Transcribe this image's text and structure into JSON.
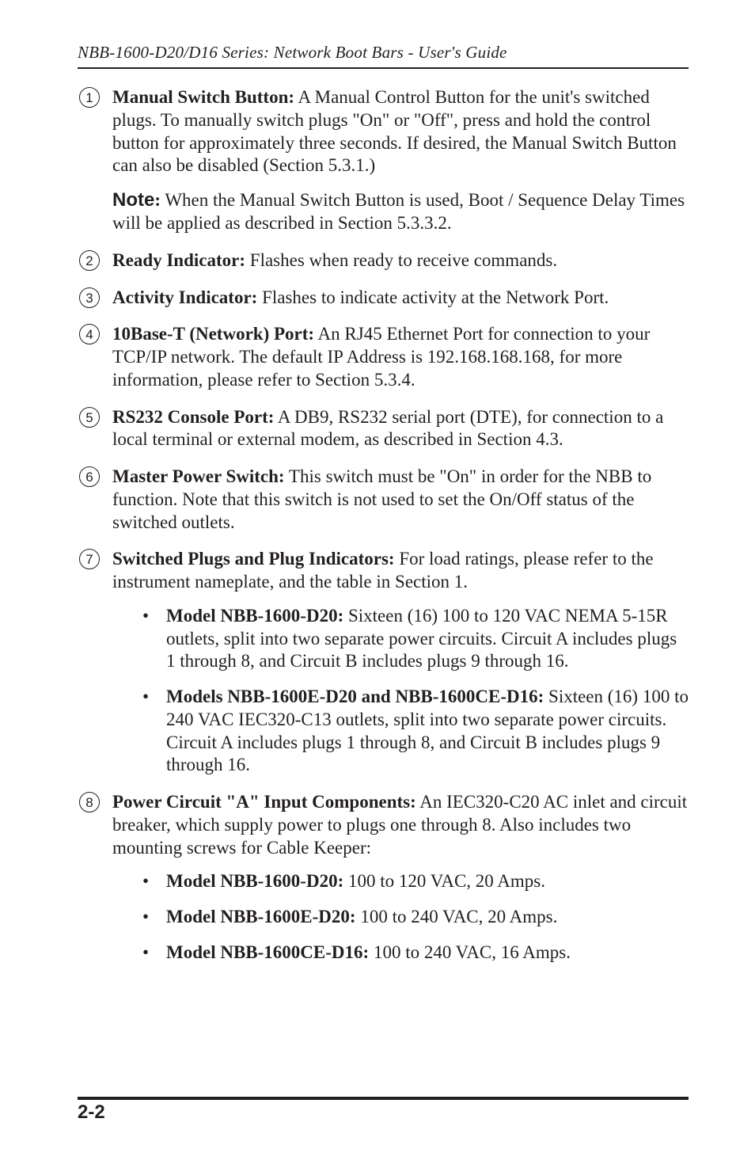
{
  "header": {
    "running_title": "NBB-1600-D20/D16 Series: Network Boot Bars - User's Guide"
  },
  "items": [
    {
      "num": "1",
      "title": "Manual Switch Button:",
      "body": "  A Manual Control Button for the unit's switched plugs.  To manually switch plugs \"On\" or \"Off\", press and hold the control button for approximately three seconds.  If desired, the Manual Switch Button can also be disabled (Section 5.3.1.)",
      "note_label": "Note",
      "note_body": "  When the Manual Switch Button is used, Boot / Sequence Delay Times will be applied as described in Section 5.3.3.2."
    },
    {
      "num": "2",
      "title": "Ready Indicator:",
      "body": "  Flashes when ready to receive commands."
    },
    {
      "num": "3",
      "title": "Activity Indicator:",
      "body": "  Flashes to indicate activity at the Network Port."
    },
    {
      "num": "4",
      "title": "10Base-T (Network) Port:",
      "body": "  An RJ45 Ethernet Port for connection to your TCP/IP network.  The default IP Address is 192.168.168.168, for more information, please refer to Section 5.3.4."
    },
    {
      "num": "5",
      "title": "RS232 Console Port:",
      "body": "  A DB9, RS232 serial port (DTE), for connection to a local terminal or external modem, as described in Section 4.3."
    },
    {
      "num": "6",
      "title": "Master Power Switch:",
      "body": "  This switch must be \"On\" in order for the NBB to function.  Note that this switch is not used to set the On/Off status of the switched outlets."
    },
    {
      "num": "7",
      "title": "Switched Plugs and Plug Indicators:",
      "body": "  For load ratings, please refer to the instrument nameplate, and the table in Section 1.",
      "sub": [
        {
          "title": "Model NBB-1600-D20:",
          "body": "  Sixteen (16) 100 to 120 VAC NEMA 5-15R outlets, split into two separate power circuits.  Circuit A includes plugs 1 through 8, and Circuit B includes plugs 9 through 16."
        },
        {
          "title": "Models NBB-1600E-D20 and NBB-1600CE-D16:",
          "body": "  Sixteen (16) 100 to 240 VAC IEC320-C13 outlets, split into two separate power circuits.  Circuit A includes plugs 1 through 8, and Circuit B includes plugs 9 through 16."
        }
      ]
    },
    {
      "num": "8",
      "title": "Power Circuit \"A\" Input Components:",
      "body": "  An IEC320-C20 AC inlet and circuit breaker, which supply power to plugs one through 8.  Also includes two mounting screws for Cable Keeper:",
      "sub": [
        {
          "title": "Model NBB-1600-D20:",
          "body": "  100 to 120 VAC, 20 Amps."
        },
        {
          "title": "Model NBB-1600E-D20:",
          "body": "  100 to 240 VAC, 20 Amps."
        },
        {
          "title": "Model NBB-1600CE-D16:",
          "body": "  100 to 240 VAC, 16 Amps."
        }
      ]
    }
  ],
  "footer": {
    "page_number": "2-2"
  }
}
